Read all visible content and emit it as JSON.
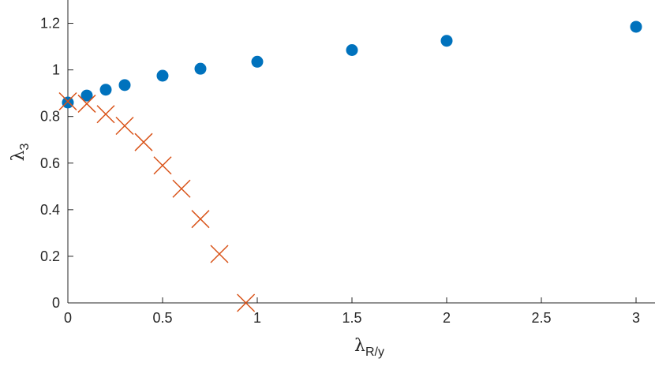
{
  "chart_data": {
    "type": "scatter",
    "xlabel": {
      "symbol": "λ",
      "subscript": "R/y"
    },
    "ylabel": {
      "symbol": "λ",
      "subscript": "3"
    },
    "xlim": [
      0,
      3.1
    ],
    "ylim": [
      0,
      1.3
    ],
    "xticks": [
      0,
      0.5,
      1,
      1.5,
      2,
      2.5,
      3
    ],
    "xtick_labels": [
      "0",
      "0.5",
      "1",
      "1.5",
      "2",
      "2.5",
      "3"
    ],
    "yticks": [
      0,
      0.2,
      0.4,
      0.6,
      0.8,
      1,
      1.2
    ],
    "ytick_labels": [
      "0",
      "0.2",
      "0.4",
      "0.6",
      "0.8",
      "1",
      "1.2"
    ],
    "grid": false,
    "series": [
      {
        "marker": "circle",
        "color": "#0072BD",
        "x": [
          0,
          0.1,
          0.2,
          0.3,
          0.5,
          0.7,
          1,
          1.5,
          2,
          3
        ],
        "y": [
          0.86,
          0.89,
          0.915,
          0.935,
          0.975,
          1.005,
          1.035,
          1.085,
          1.125,
          1.185
        ]
      },
      {
        "marker": "cross",
        "color": "#D95319",
        "x": [
          0,
          0.1,
          0.2,
          0.3,
          0.4,
          0.5,
          0.6,
          0.7,
          0.8,
          0.94
        ],
        "y": [
          0.865,
          0.855,
          0.81,
          0.76,
          0.69,
          0.59,
          0.49,
          0.36,
          0.21,
          0.0
        ]
      }
    ]
  }
}
